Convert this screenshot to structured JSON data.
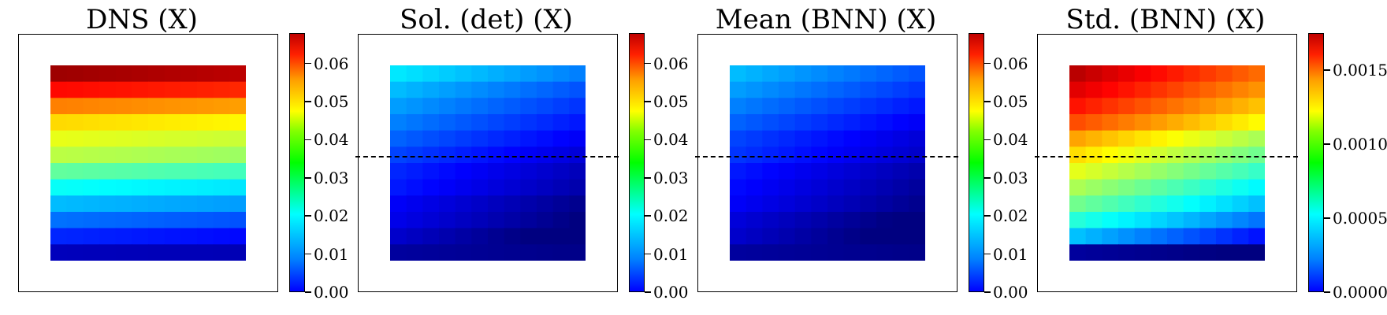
{
  "chart_data": [
    {
      "type": "heatmap",
      "title": "DNS (X)",
      "colormap": "jet",
      "clim": [
        0,
        0.068
      ],
      "colorbar_ticks": [
        "0.00",
        "0.01",
        "0.02",
        "0.03",
        "0.04",
        "0.05",
        "0.06"
      ],
      "colorbar_tick_values": [
        0,
        0.01,
        0.02,
        0.03,
        0.04,
        0.05,
        0.06
      ],
      "grid_size": [
        12,
        12
      ],
      "row_profile": [
        0.066,
        0.059,
        0.051,
        0.045,
        0.041,
        0.038,
        0.032,
        0.026,
        0.021,
        0.016,
        0.011,
        0.004
      ],
      "col_trend": -0.002,
      "dashed_line": false
    },
    {
      "type": "heatmap",
      "title": "Sol. (det) (X)",
      "colormap": "jet",
      "clim": [
        0,
        0.068
      ],
      "colorbar_ticks": [
        "0.00",
        "0.01",
        "0.02",
        "0.03",
        "0.04",
        "0.05",
        "0.06"
      ],
      "colorbar_tick_values": [
        0,
        0.01,
        0.02,
        0.03,
        0.04,
        0.05,
        0.06
      ],
      "grid_size": [
        12,
        12
      ],
      "row_profile": [
        0.024,
        0.021,
        0.019,
        0.017,
        0.015,
        0.013,
        0.011,
        0.01,
        0.008,
        0.007,
        0.005,
        0.002
      ],
      "col_trend": -0.007,
      "dashed_line": true
    },
    {
      "type": "heatmap",
      "title": "Mean (BNN) (X)",
      "colormap": "jet",
      "clim": [
        0,
        0.068
      ],
      "colorbar_ticks": [
        "0.00",
        "0.01",
        "0.02",
        "0.03",
        "0.04",
        "0.05",
        "0.06"
      ],
      "colorbar_tick_values": [
        0,
        0.01,
        0.02,
        0.03,
        0.04,
        0.05,
        0.06
      ],
      "grid_size": [
        12,
        12
      ],
      "row_profile": [
        0.021,
        0.019,
        0.017,
        0.015,
        0.013,
        0.012,
        0.01,
        0.009,
        0.008,
        0.006,
        0.005,
        0.002
      ],
      "col_trend": -0.007,
      "dashed_line": true
    },
    {
      "type": "heatmap",
      "title": "Std. (BNN) (X)",
      "colormap": "jet",
      "clim": [
        0,
        0.00175
      ],
      "colorbar_ticks": [
        "0.0000",
        "0.0005",
        "0.0010",
        "0.0015"
      ],
      "colorbar_tick_values": [
        0,
        0.0005,
        0.001,
        0.0015
      ],
      "grid_size": [
        12,
        12
      ],
      "row_profile": [
        0.00165,
        0.00158,
        0.0015,
        0.0014,
        0.00125,
        0.00115,
        0.00105,
        0.00095,
        0.00085,
        0.00072,
        0.00055,
        5e-05
      ],
      "col_trend": -0.0003,
      "dashed_line": true
    }
  ]
}
